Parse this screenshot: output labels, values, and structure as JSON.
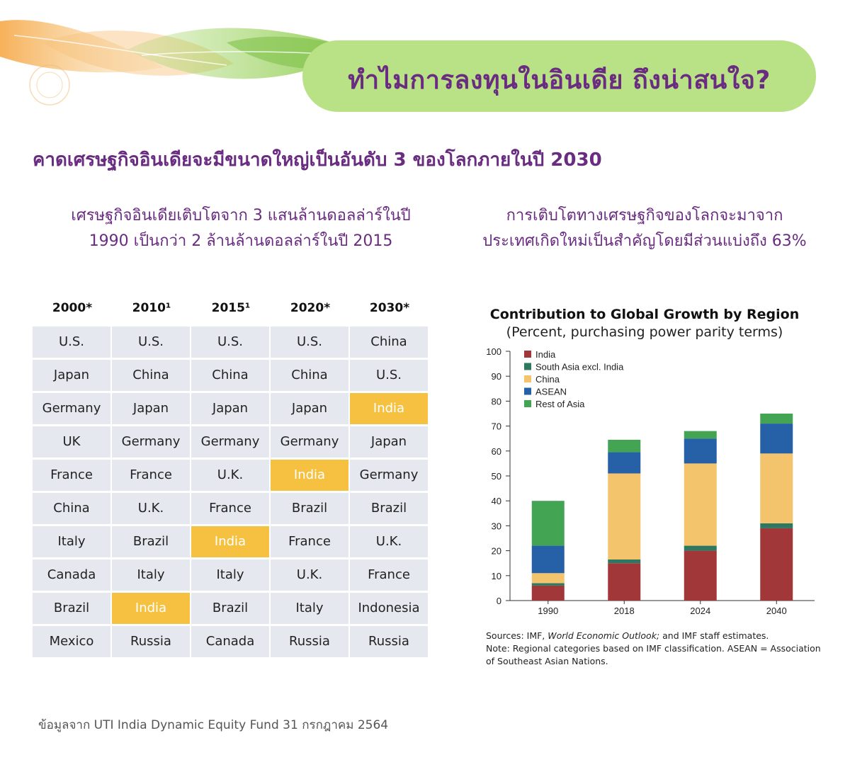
{
  "banner": {
    "title": "ทำไมการลงทุนในอินเดีย ถึงน่าสนใจ?"
  },
  "headline": "คาดเศรษฐกิจอินเดียจะมีขนาดใหญ่เป็นอันดับ 3 ของโลกภายในปี 2030",
  "left_subtitle": {
    "line1": "เศรษฐกิจอินเดียเติบโตจาก 3 แสนล้านดอลล่าร์ในปี",
    "line2": "1990 เป็นกว่า 2 ล้านล้านดอลล่าร์ในปี 2015"
  },
  "right_subtitle": {
    "line1": "การเติบโตทางเศรษฐกิจของโลกจะมาจาก",
    "line2": "ประเทศเกิดใหม่เป็นสำคัญโดยมีส่วนแบ่งถึง 63%"
  },
  "ranking_table": {
    "headers": [
      "2000*",
      "2010¹",
      "2015¹",
      "2020*",
      "2030*"
    ],
    "rows": [
      [
        "U.S.",
        "U.S.",
        "U.S.",
        "U.S.",
        "China"
      ],
      [
        "Japan",
        "China",
        "China",
        "China",
        "U.S."
      ],
      [
        "Germany",
        "Japan",
        "Japan",
        "Japan",
        "India"
      ],
      [
        "UK",
        "Germany",
        "Germany",
        "Germany",
        "Japan"
      ],
      [
        "France",
        "France",
        "U.K.",
        "India",
        "Germany"
      ],
      [
        "China",
        "U.K.",
        "France",
        "Brazil",
        "Brazil"
      ],
      [
        "Italy",
        "Brazil",
        "India",
        "France",
        "U.K."
      ],
      [
        "Canada",
        "Italy",
        "Italy",
        "U.K.",
        "France"
      ],
      [
        "Brazil",
        "India",
        "Brazil",
        "Italy",
        "Indonesia"
      ],
      [
        "Mexico",
        "Russia",
        "Canada",
        "Russia",
        "Russia"
      ]
    ],
    "highlight_value": "India",
    "highlight_color": "#f6c141"
  },
  "chart_data": {
    "type": "bar",
    "stacked": true,
    "title": "Contribution to Global Growth by Region",
    "subtitle": "(Percent, purchasing power parity terms)",
    "categories": [
      "1990",
      "2018",
      "2024",
      "2040"
    ],
    "ylim": [
      0,
      100
    ],
    "yticks": [
      0,
      10,
      20,
      30,
      40,
      50,
      60,
      70,
      80,
      90,
      100
    ],
    "legend_position": "top-left",
    "series": [
      {
        "name": "India",
        "color": "#a2373a",
        "values": [
          6,
          15,
          20,
          29
        ]
      },
      {
        "name": "South Asia excl. India",
        "color": "#2e7862",
        "values": [
          1,
          1.5,
          2,
          2
        ]
      },
      {
        "name": "China",
        "color": "#f3c46b",
        "values": [
          4,
          34.5,
          33,
          28
        ]
      },
      {
        "name": "ASEAN",
        "color": "#2661a8",
        "values": [
          11,
          8.5,
          10,
          12
        ]
      },
      {
        "name": "Rest of Asia",
        "color": "#43a553",
        "values": [
          18,
          5,
          3,
          4
        ]
      }
    ]
  },
  "chart_notes": {
    "sources_prefix": "Sources: IMF, ",
    "sources_italic": "World Economic Outlook;",
    "sources_suffix": " and IMF staff estimates.",
    "note": "Note: Regional categories based on IMF classification. ASEAN = Association of Southeast Asian Nations."
  },
  "footer": "ข้อมูลจาก UTI India Dynamic Equity Fund 31 กรกฎาคม 2564"
}
